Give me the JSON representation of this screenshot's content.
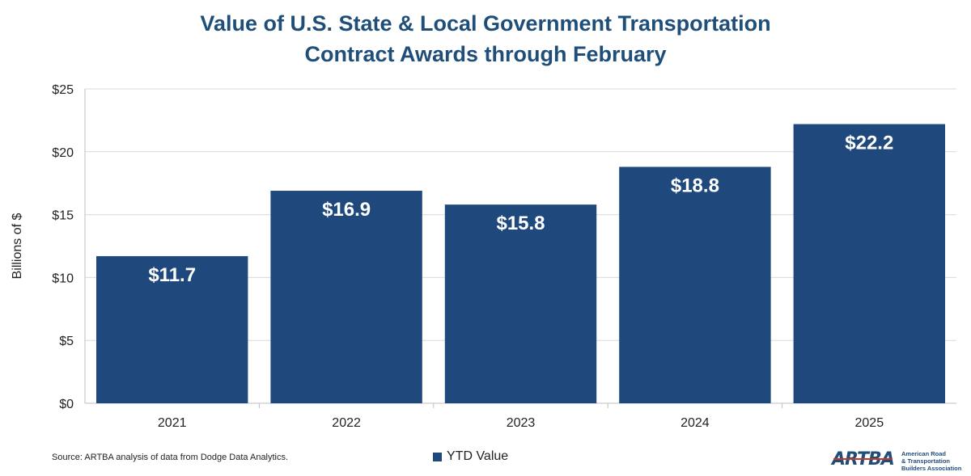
{
  "title_lines": [
    "Value of U.S. State & Local Government Transportation",
    "Contract Awards through February"
  ],
  "source": "Source: ARTBA analysis of data from Dodge Data Analytics.",
  "legend_label": "YTD Value",
  "logo": {
    "mark": "ARTBA",
    "text_lines": [
      "American Road",
      "& Transportation",
      "Builders Association"
    ]
  },
  "colors": {
    "bar": "#1f497d",
    "title": "#1f4e79",
    "grid": "#d9d9d9"
  },
  "chart_data": {
    "type": "bar",
    "title": "Value of U.S. State & Local Government Transportation Contract Awards through February",
    "ylabel": "Billions of $",
    "xlabel": "",
    "categories": [
      "2021",
      "2022",
      "2023",
      "2024",
      "2025"
    ],
    "series": [
      {
        "name": "YTD Value",
        "values": [
          11.7,
          16.9,
          15.8,
          18.8,
          22.2
        ]
      }
    ],
    "data_labels": [
      "$11.7",
      "$16.9",
      "$15.8",
      "$18.8",
      "$22.2"
    ],
    "ylim": [
      0,
      25
    ],
    "yticks": [
      0,
      5,
      10,
      15,
      20,
      25
    ],
    "ytick_labels": [
      "$0",
      "$5",
      "$10",
      "$15",
      "$20",
      "$25"
    ],
    "grid": true,
    "legend_position": "bottom"
  }
}
